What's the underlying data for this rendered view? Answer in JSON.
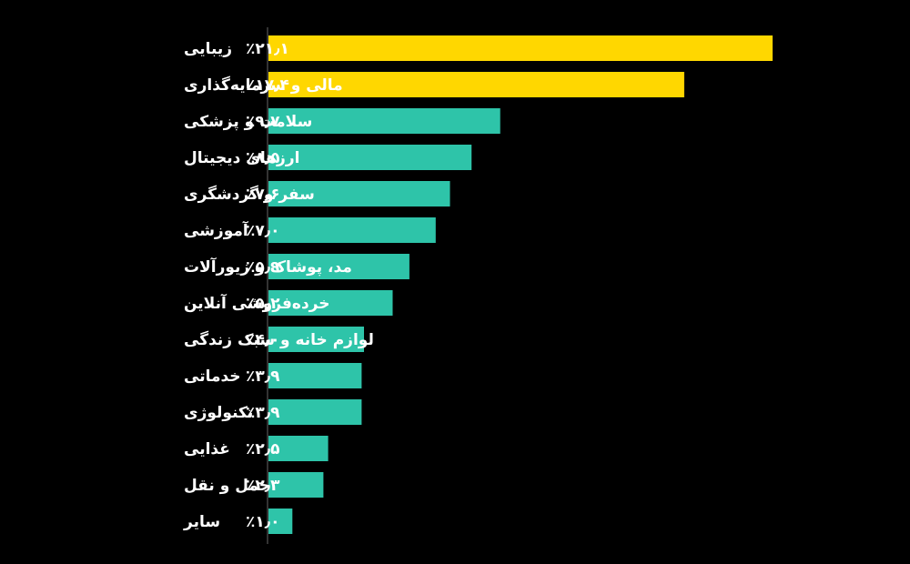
{
  "chart_data": {
    "type": "bar",
    "orientation": "horizontal",
    "categories": [
      "زیبایی",
      "مالی و سرمایه‌گذاری",
      "سلامت و پزشکی",
      "ارزهای دیجیتال",
      "سفر و گردشگری",
      "آموزشی",
      "مد، پوشاک و زیورآلات",
      "خرده‌فروشی آنلاین",
      "لوازم خانه و سبک زندگی",
      "خدماتی",
      "تکنولوژی",
      "غذایی",
      "حمل و نقل",
      "سایر"
    ],
    "values": [
      21.1,
      17.4,
      9.7,
      8.5,
      7.6,
      7.0,
      5.9,
      5.2,
      4.0,
      3.9,
      3.9,
      2.5,
      2.3,
      1.0
    ],
    "value_labels": [
      "٪۲۱٫۱",
      "٪۱۷٫۴",
      "٪۹٫۷",
      "٪۸٫۵",
      "٪۷٫۶",
      "٪۷٫۰",
      "٪۵٫۹",
      "٪۵٫۲",
      "٪۴٫۰",
      "٪۳٫۹",
      "٪۳٫۹",
      "٪۲٫۵",
      "٪۲٫۳",
      "٪۱٫۰"
    ],
    "highlight_count": 2,
    "colors": {
      "highlight": "#FFD700",
      "default": "#2EC4A9",
      "background": "#000000",
      "axis": "#666666",
      "text": "#FFFFFF"
    },
    "title": "",
    "xlabel": "",
    "ylabel": "",
    "xlim": [
      0,
      21.1
    ],
    "grid": false,
    "legend": "none"
  }
}
